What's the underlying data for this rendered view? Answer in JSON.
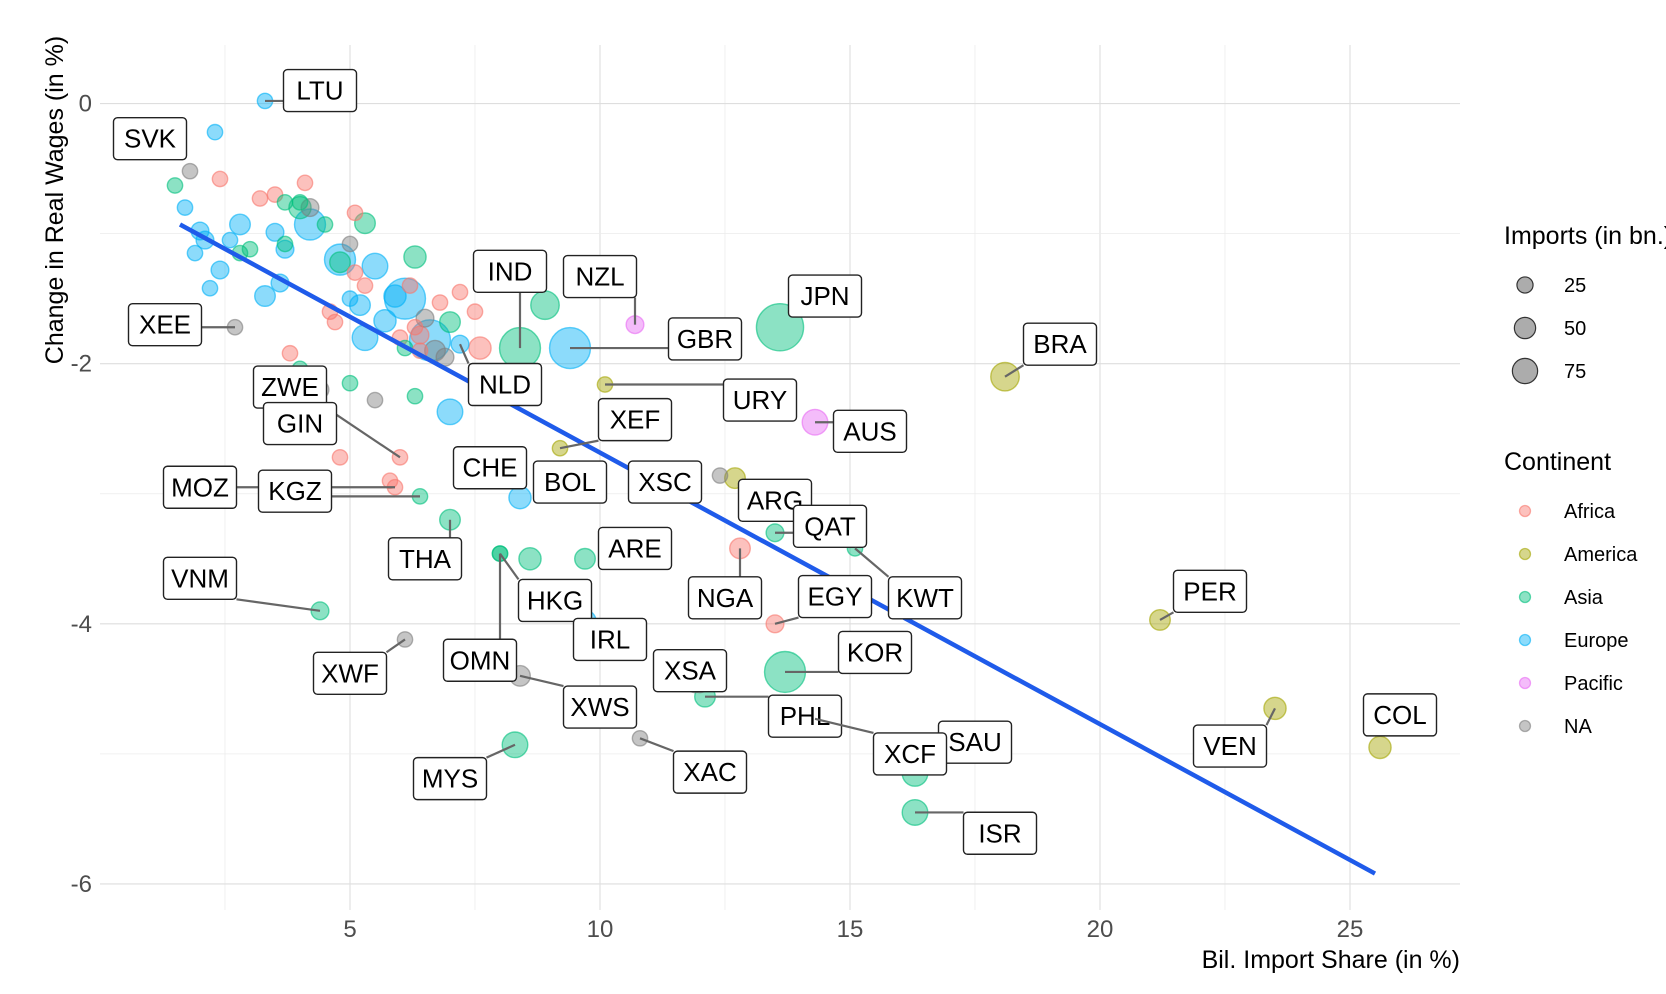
{
  "chart_data": {
    "type": "scatter",
    "xlabel": "Bil. Import Share (in %)",
    "ylabel": "Change in Real Wages (in %)",
    "xlim": [
      0,
      27.2
    ],
    "ylim": [
      -6.2,
      0.45
    ],
    "x_ticks": [
      5,
      10,
      15,
      20,
      25
    ],
    "y_ticks": [
      0,
      -2,
      -4,
      -6
    ],
    "grid": true,
    "legend_position": "right",
    "size_legend": {
      "title": "Imports (in bn.)",
      "entries": [
        {
          "label": "25",
          "value": 25
        },
        {
          "label": "50",
          "value": 50
        },
        {
          "label": "75",
          "value": 75
        }
      ]
    },
    "color_legend": {
      "title": "Continent",
      "entries": [
        {
          "label": "Africa",
          "color": "#f8766d"
        },
        {
          "label": "America",
          "color": "#a3a500"
        },
        {
          "label": "Asia",
          "color": "#00bf7d"
        },
        {
          "label": "Europe",
          "color": "#00b0f6"
        },
        {
          "label": "Pacific",
          "color": "#e76bf3"
        },
        {
          "label": "NA",
          "color": "#7f7f7f"
        }
      ]
    },
    "trend_line": {
      "x": [
        1.6,
        25.5
      ],
      "y": [
        -0.93,
        -5.92
      ],
      "color": "#1f5bea"
    },
    "labeled_points": [
      {
        "label": "LTU",
        "x": 3.3,
        "y": 0.02,
        "size": 3,
        "continent": "Europe",
        "lx": 4.4,
        "ly": 0.1
      },
      {
        "label": "SVK",
        "x": 1.8,
        "y": -0.52,
        "size": 3,
        "continent": "NA",
        "lx": 1.0,
        "ly": -0.27
      },
      {
        "label": "XEE",
        "x": 2.7,
        "y": -1.72,
        "size": 3,
        "continent": "NA",
        "lx": 1.3,
        "ly": -1.7
      },
      {
        "label": "IND",
        "x": 8.4,
        "y": -1.88,
        "size": 50,
        "continent": "Asia",
        "lx": 8.2,
        "ly": -1.29
      },
      {
        "label": "NZL",
        "x": 10.7,
        "y": -1.7,
        "size": 5,
        "continent": "Pacific",
        "lx": 10.0,
        "ly": -1.33
      },
      {
        "label": "GBR",
        "x": 9.4,
        "y": -1.88,
        "size": 50,
        "continent": "Europe",
        "lx": 12.1,
        "ly": -1.81
      },
      {
        "label": "JPN",
        "x": 13.6,
        "y": -1.72,
        "size": 70,
        "continent": "Asia",
        "lx": 14.5,
        "ly": -1.48
      },
      {
        "label": "BRA",
        "x": 18.1,
        "y": -2.1,
        "size": 20,
        "continent": "America",
        "lx": 19.2,
        "ly": -1.85
      },
      {
        "label": "ZWE",
        "x": 6.0,
        "y": -2.72,
        "size": 3,
        "continent": "Africa",
        "lx": 3.8,
        "ly": -2.18
      },
      {
        "label": "NLD",
        "x": 7.2,
        "y": -1.85,
        "size": 5,
        "continent": "Europe",
        "lx": 8.1,
        "ly": -2.16
      },
      {
        "label": "URY",
        "x": 10.1,
        "y": -2.16,
        "size": 3,
        "continent": "America",
        "lx": 13.2,
        "ly": -2.28
      },
      {
        "label": "GIN",
        "x": 4.8,
        "y": -2.72,
        "size": 3,
        "continent": "Africa",
        "lx": 4.0,
        "ly": -2.46
      },
      {
        "label": "XEF",
        "x": 9.2,
        "y": -2.65,
        "size": 3,
        "continent": "America",
        "lx": 10.7,
        "ly": -2.43
      },
      {
        "label": "AUS",
        "x": 14.3,
        "y": -2.45,
        "size": 15,
        "continent": "Pacific",
        "lx": 15.4,
        "ly": -2.52
      },
      {
        "label": "MOZ",
        "x": 5.9,
        "y": -2.95,
        "size": 3,
        "continent": "Africa",
        "lx": 2.0,
        "ly": -2.95
      },
      {
        "label": "KGZ",
        "x": 6.4,
        "y": -3.02,
        "size": 3,
        "continent": "Asia",
        "lx": 3.9,
        "ly": -2.98
      },
      {
        "label": "CHE",
        "x": 8.4,
        "y": -3.03,
        "size": 10,
        "continent": "Europe",
        "lx": 7.8,
        "ly": -2.8
      },
      {
        "label": "BOL",
        "x": 9.7,
        "y": -2.9,
        "size": 3,
        "continent": "America",
        "lx": 9.4,
        "ly": -2.91
      },
      {
        "label": "XSC",
        "x": 11.3,
        "y": -2.9,
        "size": 3,
        "continent": "NA",
        "lx": 11.3,
        "ly": -2.91
      },
      {
        "label": "ARG",
        "x": 12.7,
        "y": -2.88,
        "size": 8,
        "continent": "America",
        "lx": 13.5,
        "ly": -3.05
      },
      {
        "label": "QAT",
        "x": 13.5,
        "y": -3.3,
        "size": 5,
        "continent": "Asia",
        "lx": 14.6,
        "ly": -3.25
      },
      {
        "label": "THA",
        "x": 7.0,
        "y": -3.2,
        "size": 8,
        "continent": "Asia",
        "lx": 6.5,
        "ly": -3.5
      },
      {
        "label": "ARE",
        "x": 9.7,
        "y": -3.5,
        "size": 8,
        "continent": "Asia",
        "lx": 10.7,
        "ly": -3.42
      },
      {
        "label": "NGA",
        "x": 12.8,
        "y": -3.42,
        "size": 8,
        "continent": "Africa",
        "lx": 12.5,
        "ly": -3.8
      },
      {
        "label": "KWT",
        "x": 15.1,
        "y": -3.42,
        "size": 3,
        "continent": "Asia",
        "lx": 16.5,
        "ly": -3.8
      },
      {
        "label": "EGY",
        "x": 13.5,
        "y": -4.0,
        "size": 5,
        "continent": "Africa",
        "lx": 14.7,
        "ly": -3.79
      },
      {
        "label": "HKG",
        "x": 8.0,
        "y": -3.46,
        "size": 3,
        "continent": "Asia",
        "lx": 9.1,
        "ly": -3.82
      },
      {
        "label": "VNM",
        "x": 4.4,
        "y": -3.9,
        "size": 5,
        "continent": "Asia",
        "lx": 2.0,
        "ly": -3.65
      },
      {
        "label": "PER",
        "x": 21.2,
        "y": -3.97,
        "size": 8,
        "continent": "America",
        "lx": 22.2,
        "ly": -3.75
      },
      {
        "label": "IRL",
        "x": 9.7,
        "y": -3.98,
        "size": 10,
        "continent": "Europe",
        "lx": 10.2,
        "ly": -4.12
      },
      {
        "label": "XWF",
        "x": 6.1,
        "y": -4.12,
        "size": 3,
        "continent": "NA",
        "lx": 5.0,
        "ly": -4.38
      },
      {
        "label": "OMN",
        "x": 8.0,
        "y": -3.46,
        "size": 3,
        "continent": "Asia",
        "lx": 7.6,
        "ly": -4.28
      },
      {
        "label": "XSA",
        "x": 12.0,
        "y": -4.47,
        "size": 3,
        "continent": "NA",
        "lx": 11.8,
        "ly": -4.36
      },
      {
        "label": "KOR",
        "x": 13.7,
        "y": -4.37,
        "size": 50,
        "continent": "Asia",
        "lx": 15.5,
        "ly": -4.22
      },
      {
        "label": "XWS",
        "x": 8.4,
        "y": -4.4,
        "size": 8,
        "continent": "NA",
        "lx": 10.0,
        "ly": -4.64
      },
      {
        "label": "PHL",
        "x": 12.1,
        "y": -4.56,
        "size": 8,
        "continent": "Asia",
        "lx": 14.1,
        "ly": -4.71
      },
      {
        "label": "VEN",
        "x": 23.5,
        "y": -4.65,
        "size": 10,
        "continent": "America",
        "lx": 22.6,
        "ly": -4.94
      },
      {
        "label": "COL",
        "x": 25.6,
        "y": -4.95,
        "size": 10,
        "continent": "America",
        "lx": 26.0,
        "ly": -4.7
      },
      {
        "label": "SAU",
        "x": 16.3,
        "y": -5.15,
        "size": 15,
        "continent": "Asia",
        "lx": 17.5,
        "ly": -4.91
      },
      {
        "label": "XCF",
        "x": 14.3,
        "y": -4.73,
        "size": 3,
        "continent": "NA",
        "lx": 16.2,
        "ly": -5.0
      },
      {
        "label": "MYS",
        "x": 8.3,
        "y": -4.93,
        "size": 15,
        "continent": "Asia",
        "lx": 7.0,
        "ly": -5.19
      },
      {
        "label": "XAC",
        "x": 10.8,
        "y": -4.88,
        "size": 3,
        "continent": "NA",
        "lx": 12.2,
        "ly": -5.14
      },
      {
        "label": "ISR",
        "x": 16.3,
        "y": -5.45,
        "size": 15,
        "continent": "Asia",
        "lx": 18.0,
        "ly": -5.61
      }
    ],
    "other_points": [
      {
        "x": 1.5,
        "y": -0.63,
        "size": 3,
        "continent": "Asia"
      },
      {
        "x": 1.7,
        "y": -0.8,
        "size": 3,
        "continent": "Europe"
      },
      {
        "x": 1.9,
        "y": -1.15,
        "size": 3,
        "continent": "Europe"
      },
      {
        "x": 2.0,
        "y": -0.98,
        "size": 5,
        "continent": "Europe"
      },
      {
        "x": 2.1,
        "y": -1.05,
        "size": 5,
        "continent": "Europe"
      },
      {
        "x": 2.2,
        "y": -1.42,
        "size": 3,
        "continent": "Europe"
      },
      {
        "x": 2.3,
        "y": -0.22,
        "size": 3,
        "continent": "Europe"
      },
      {
        "x": 2.4,
        "y": -0.58,
        "size": 3,
        "continent": "Africa"
      },
      {
        "x": 2.4,
        "y": -1.28,
        "size": 5,
        "continent": "Europe"
      },
      {
        "x": 2.6,
        "y": -1.05,
        "size": 3,
        "continent": "Europe"
      },
      {
        "x": 2.8,
        "y": -0.93,
        "size": 8,
        "continent": "Europe"
      },
      {
        "x": 2.8,
        "y": -1.15,
        "size": 3,
        "continent": "Asia"
      },
      {
        "x": 3.0,
        "y": -1.12,
        "size": 3,
        "continent": "Asia"
      },
      {
        "x": 3.2,
        "y": -0.73,
        "size": 3,
        "continent": "Africa"
      },
      {
        "x": 3.3,
        "y": -1.48,
        "size": 8,
        "continent": "Europe"
      },
      {
        "x": 3.5,
        "y": -0.7,
        "size": 3,
        "continent": "Africa"
      },
      {
        "x": 3.5,
        "y": -0.99,
        "size": 5,
        "continent": "Europe"
      },
      {
        "x": 3.6,
        "y": -1.38,
        "size": 5,
        "continent": "Europe"
      },
      {
        "x": 3.7,
        "y": -1.12,
        "size": 5,
        "continent": "Europe"
      },
      {
        "x": 3.7,
        "y": -1.08,
        "size": 3,
        "continent": "Asia"
      },
      {
        "x": 3.7,
        "y": -0.76,
        "size": 3,
        "continent": "Asia"
      },
      {
        "x": 3.8,
        "y": -1.92,
        "size": 3,
        "continent": "Africa"
      },
      {
        "x": 4.0,
        "y": -0.76,
        "size": 3,
        "continent": "Asia"
      },
      {
        "x": 4.0,
        "y": -2.04,
        "size": 3,
        "continent": "Asia"
      },
      {
        "x": 4.0,
        "y": -0.8,
        "size": 10,
        "continent": "Asia"
      },
      {
        "x": 4.1,
        "y": -0.61,
        "size": 3,
        "continent": "Africa"
      },
      {
        "x": 4.2,
        "y": -0.8,
        "size": 5,
        "continent": "NA"
      },
      {
        "x": 4.2,
        "y": -0.93,
        "size": 25,
        "continent": "Europe"
      },
      {
        "x": 4.5,
        "y": -0.93,
        "size": 3,
        "continent": "Asia"
      },
      {
        "x": 4.4,
        "y": -2.2,
        "size": 5,
        "continent": "NA"
      },
      {
        "x": 4.6,
        "y": -1.6,
        "size": 3,
        "continent": "Africa"
      },
      {
        "x": 4.7,
        "y": -1.68,
        "size": 3,
        "continent": "Africa"
      },
      {
        "x": 4.8,
        "y": -1.22,
        "size": 8,
        "continent": "Asia"
      },
      {
        "x": 4.8,
        "y": -1.2,
        "size": 25,
        "continent": "Europe"
      },
      {
        "x": 5.0,
        "y": -1.5,
        "size": 3,
        "continent": "Europe"
      },
      {
        "x": 5.0,
        "y": -2.15,
        "size": 3,
        "continent": "Asia"
      },
      {
        "x": 5.0,
        "y": -1.08,
        "size": 3,
        "continent": "NA"
      },
      {
        "x": 5.1,
        "y": -0.84,
        "size": 3,
        "continent": "Africa"
      },
      {
        "x": 5.1,
        "y": -1.3,
        "size": 3,
        "continent": "Africa"
      },
      {
        "x": 5.2,
        "y": -1.55,
        "size": 8,
        "continent": "Europe"
      },
      {
        "x": 5.3,
        "y": -0.92,
        "size": 8,
        "continent": "Asia"
      },
      {
        "x": 5.3,
        "y": -1.4,
        "size": 3,
        "continent": "Africa"
      },
      {
        "x": 5.3,
        "y": -1.8,
        "size": 15,
        "continent": "Europe"
      },
      {
        "x": 5.5,
        "y": -1.25,
        "size": 15,
        "continent": "Europe"
      },
      {
        "x": 5.5,
        "y": -2.28,
        "size": 3,
        "continent": "NA"
      },
      {
        "x": 5.7,
        "y": -1.67,
        "size": 10,
        "continent": "Europe"
      },
      {
        "x": 5.8,
        "y": -2.9,
        "size": 3,
        "continent": "Africa"
      },
      {
        "x": 5.9,
        "y": -1.48,
        "size": 10,
        "continent": "Europe"
      },
      {
        "x": 6.0,
        "y": -1.8,
        "size": 3,
        "continent": "Africa"
      },
      {
        "x": 6.1,
        "y": -1.88,
        "size": 3,
        "continent": "Asia"
      },
      {
        "x": 6.1,
        "y": -1.5,
        "size": 50,
        "continent": "Europe"
      },
      {
        "x": 6.2,
        "y": -1.4,
        "size": 3,
        "continent": "Africa"
      },
      {
        "x": 6.3,
        "y": -2.25,
        "size": 3,
        "continent": "Asia"
      },
      {
        "x": 6.3,
        "y": -1.18,
        "size": 10,
        "continent": "Asia"
      },
      {
        "x": 6.3,
        "y": -1.72,
        "size": 3,
        "continent": "Africa"
      },
      {
        "x": 6.4,
        "y": -1.9,
        "size": 3,
        "continent": "Africa"
      },
      {
        "x": 6.4,
        "y": -1.78,
        "size": 5,
        "continent": "Africa"
      },
      {
        "x": 6.5,
        "y": -1.65,
        "size": 5,
        "continent": "NA"
      },
      {
        "x": 6.6,
        "y": -1.82,
        "size": 50,
        "continent": "Europe"
      },
      {
        "x": 6.7,
        "y": -1.9,
        "size": 8,
        "continent": "NA"
      },
      {
        "x": 6.8,
        "y": -1.53,
        "size": 3,
        "continent": "Africa"
      },
      {
        "x": 6.9,
        "y": -1.95,
        "size": 5,
        "continent": "NA"
      },
      {
        "x": 7.0,
        "y": -1.68,
        "size": 8,
        "continent": "Asia"
      },
      {
        "x": 7.0,
        "y": -2.37,
        "size": 15,
        "continent": "Europe"
      },
      {
        "x": 7.2,
        "y": -1.45,
        "size": 3,
        "continent": "Africa"
      },
      {
        "x": 7.5,
        "y": -1.6,
        "size": 3,
        "continent": "Africa"
      },
      {
        "x": 7.6,
        "y": -1.88,
        "size": 10,
        "continent": "Africa"
      },
      {
        "x": 8.6,
        "y": -3.5,
        "size": 10,
        "continent": "Asia"
      },
      {
        "x": 8.9,
        "y": -1.55,
        "size": 20,
        "continent": "Asia"
      },
      {
        "x": 11.9,
        "y": -4.47,
        "size": 3,
        "continent": "NA"
      },
      {
        "x": 12.4,
        "y": -2.86,
        "size": 3,
        "continent": "NA"
      },
      {
        "x": 14.7,
        "y": -3.28,
        "size": 3,
        "continent": "Asia"
      }
    ]
  }
}
